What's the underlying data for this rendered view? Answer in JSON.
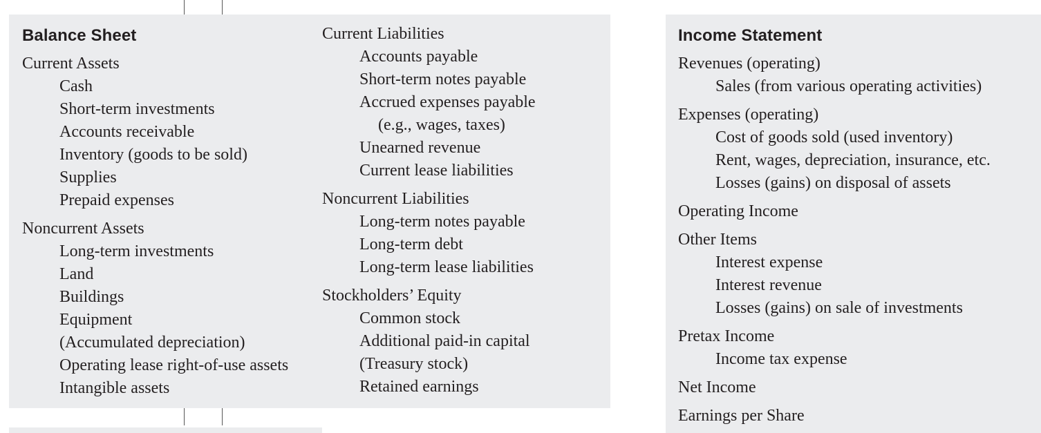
{
  "balance_sheet": {
    "title": "Balance Sheet",
    "left_sections": [
      {
        "heading": "Current Assets",
        "items": [
          {
            "text": "Cash"
          },
          {
            "text": "Short-term investments"
          },
          {
            "text": "Accounts receivable"
          },
          {
            "text": "Inventory (goods to be sold)"
          },
          {
            "text": "Supplies"
          },
          {
            "text": "Prepaid expenses"
          }
        ]
      },
      {
        "heading": "Noncurrent Assets",
        "items": [
          {
            "text": "Long-term investments"
          },
          {
            "text": "Land"
          },
          {
            "text": "Buildings"
          },
          {
            "text": "Equipment"
          },
          {
            "text": "(Accumulated depreciation)"
          },
          {
            "text": "Operating lease right-of-use assets"
          },
          {
            "text": "Intangible assets"
          }
        ]
      }
    ],
    "right_sections": [
      {
        "heading": "Current Liabilities",
        "items": [
          {
            "text": "Accounts payable"
          },
          {
            "text": "Short-term notes payable"
          },
          {
            "text": "Accrued expenses payable"
          },
          {
            "text": "(e.g., wages, taxes)",
            "sub": true
          },
          {
            "text": "Unearned revenue"
          },
          {
            "text": "Current lease liabilities"
          }
        ]
      },
      {
        "heading": "Noncurrent Liabilities",
        "items": [
          {
            "text": "Long-term notes payable"
          },
          {
            "text": "Long-term debt"
          },
          {
            "text": "Long-term lease liabilities"
          }
        ]
      },
      {
        "heading": "Stockholders’ Equity",
        "items": [
          {
            "text": "Common stock"
          },
          {
            "text": "Additional paid-in capital"
          },
          {
            "text": "(Treasury stock)"
          },
          {
            "text": "Retained earnings"
          }
        ]
      }
    ]
  },
  "income_statement": {
    "title": "Income Statement",
    "sections": [
      {
        "heading": "Revenues (operating)",
        "items": [
          {
            "text": "Sales (from various operating activities)"
          }
        ]
      },
      {
        "heading": "Expenses (operating)",
        "items": [
          {
            "text": "Cost of goods sold (used inventory)"
          },
          {
            "text": "Rent, wages, depreciation, insurance, etc."
          },
          {
            "text": "Losses (gains) on disposal of assets"
          }
        ]
      },
      {
        "heading": "Operating Income",
        "items": []
      },
      {
        "heading": "Other Items",
        "items": [
          {
            "text": "Interest expense"
          },
          {
            "text": "Interest revenue"
          },
          {
            "text": "Losses (gains) on sale of investments"
          }
        ]
      },
      {
        "heading": "Pretax Income",
        "items": [
          {
            "text": "Income tax expense"
          }
        ]
      },
      {
        "heading": "Net Income",
        "items": []
      },
      {
        "heading": "Earnings per Share",
        "items": []
      }
    ]
  },
  "colors": {
    "panel_background": "#ebecee",
    "text": "#231f20",
    "connector_line": "#555555"
  }
}
